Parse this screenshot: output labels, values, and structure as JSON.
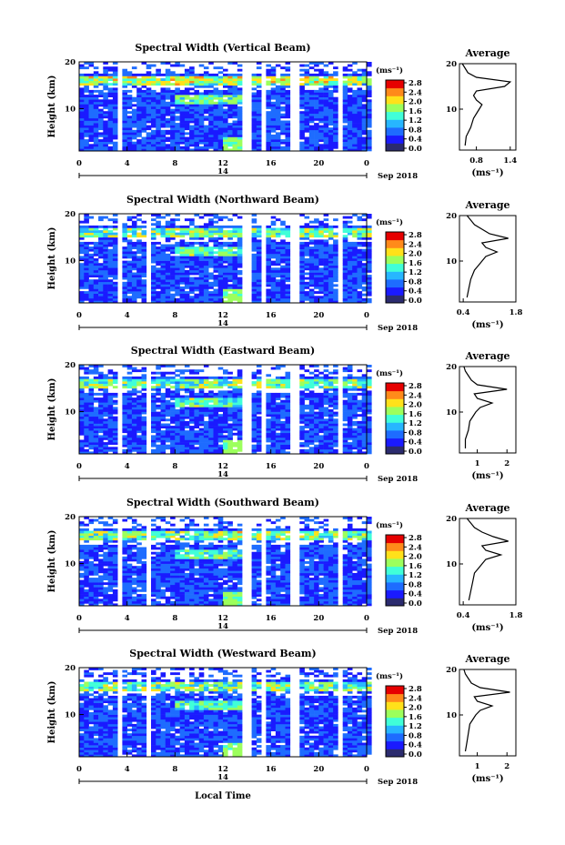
{
  "figure": {
    "xlabel": "Local Time",
    "ylabel": "Height (km)",
    "cbar_unit": "(ms⁻¹)",
    "avg_title": "Average",
    "avg_xlabel": "(ms⁻¹)",
    "date_day": "14",
    "date_label": "Sep 2018",
    "x_ticks": [
      "0",
      "4",
      "8",
      "12",
      "16",
      "20",
      "0"
    ],
    "y_ticks": [
      "20",
      "10"
    ],
    "cbar_ticks": [
      "2.8",
      "2.4",
      "2.0",
      "1.6",
      "1.2",
      "0.8",
      "0.4",
      "0.0"
    ],
    "colors": {
      "scale": [
        "#2b2b6e",
        "#1a1aff",
        "#1e6cff",
        "#27b6ff",
        "#40ffd8",
        "#9cff5c",
        "#ffe11a",
        "#ff8a1a",
        "#e60000"
      ],
      "background": "#ffffff",
      "axis": "#000000"
    }
  },
  "chart_data": [
    {
      "type": "heatmap",
      "title": "Spectral Width (Vertical Beam)",
      "x_range_hours": [
        0,
        24
      ],
      "y_range_km": [
        1,
        20
      ],
      "color_range": [
        0.0,
        3.0
      ],
      "data_gaps_hours": [
        [
          3.2,
          3.5
        ],
        [
          13.8,
          14.1
        ],
        [
          15.4,
          15.6
        ],
        [
          17.8,
          18.1
        ],
        [
          21.6,
          21.9
        ]
      ],
      "average_profile": {
        "xlim": [
          0.5,
          1.5
        ],
        "xticks": [
          "0.8",
          "1.4"
        ],
        "height_km": [
          2,
          4,
          6,
          8,
          9,
          10,
          11,
          12,
          13,
          14,
          15,
          16,
          17,
          18,
          19,
          20
        ],
        "width_ms": [
          0.6,
          0.62,
          0.7,
          0.75,
          0.8,
          0.85,
          0.9,
          0.8,
          0.75,
          0.8,
          1.3,
          1.4,
          0.8,
          0.65,
          0.6,
          0.55
        ]
      }
    },
    {
      "type": "heatmap",
      "title": "Spectral Width (Northward Beam)",
      "x_range_hours": [
        0,
        24
      ],
      "y_range_km": [
        1,
        20
      ],
      "color_range": [
        0.0,
        3.0
      ],
      "data_gaps_hours": [
        [
          3.2,
          3.5
        ],
        [
          5.7,
          6.0
        ],
        [
          13.8,
          14.1
        ],
        [
          15.4,
          15.6
        ],
        [
          17.8,
          18.1
        ],
        [
          21.6,
          21.9
        ]
      ],
      "average_profile": {
        "xlim": [
          0.3,
          1.8
        ],
        "xticks": [
          "0.4",
          "1.8"
        ],
        "height_km": [
          2,
          4,
          6,
          8,
          9,
          10,
          11,
          12,
          13,
          14,
          15,
          16,
          17,
          18,
          19,
          20
        ],
        "width_ms": [
          0.5,
          0.55,
          0.6,
          0.7,
          0.8,
          0.9,
          1.0,
          1.3,
          1.0,
          0.9,
          1.6,
          1.1,
          0.9,
          0.7,
          0.6,
          0.5
        ]
      }
    },
    {
      "type": "heatmap",
      "title": "Spectral Width (Eastward Beam)",
      "x_range_hours": [
        0,
        24
      ],
      "y_range_km": [
        1,
        20
      ],
      "color_range": [
        0.0,
        3.0
      ],
      "data_gaps_hours": [
        [
          3.2,
          3.5
        ],
        [
          5.7,
          6.0
        ],
        [
          13.8,
          14.1
        ],
        [
          15.4,
          15.6
        ],
        [
          17.8,
          18.1
        ],
        [
          21.6,
          21.9
        ]
      ],
      "average_profile": {
        "xlim": [
          0.4,
          2.3
        ],
        "xticks": [
          "1",
          "2"
        ],
        "height_km": [
          2,
          4,
          6,
          8,
          9,
          10,
          11,
          12,
          13,
          14,
          15,
          16,
          17,
          18,
          19,
          20
        ],
        "width_ms": [
          0.6,
          0.6,
          0.7,
          0.75,
          0.85,
          0.95,
          1.1,
          1.5,
          1.0,
          0.9,
          2.0,
          1.0,
          0.8,
          0.7,
          0.6,
          0.55
        ]
      }
    },
    {
      "type": "heatmap",
      "title": "Spectral Width (Southward Beam)",
      "x_range_hours": [
        0,
        24
      ],
      "y_range_km": [
        1,
        20
      ],
      "color_range": [
        0.0,
        3.0
      ],
      "data_gaps_hours": [
        [
          3.2,
          3.5
        ],
        [
          5.7,
          6.0
        ],
        [
          13.8,
          14.1
        ],
        [
          15.4,
          15.6
        ],
        [
          17.8,
          18.1
        ],
        [
          21.6,
          21.9
        ]
      ],
      "average_profile": {
        "xlim": [
          0.3,
          1.8
        ],
        "xticks": [
          "0.4",
          "1.8"
        ],
        "height_km": [
          2,
          4,
          6,
          8,
          9,
          10,
          11,
          12,
          13,
          14,
          15,
          16,
          17,
          18,
          19,
          20
        ],
        "width_ms": [
          0.55,
          0.6,
          0.65,
          0.7,
          0.8,
          0.9,
          1.0,
          1.4,
          1.0,
          0.9,
          1.6,
          1.2,
          0.9,
          0.7,
          0.6,
          0.5
        ]
      }
    },
    {
      "type": "heatmap",
      "title": "Spectral Width (Westward Beam)",
      "x_range_hours": [
        0,
        24
      ],
      "y_range_km": [
        1,
        20
      ],
      "color_range": [
        0.0,
        3.0
      ],
      "data_gaps_hours": [
        [
          3.2,
          3.5
        ],
        [
          5.7,
          6.0
        ],
        [
          13.8,
          14.1
        ],
        [
          15.4,
          15.6
        ],
        [
          17.8,
          18.1
        ],
        [
          21.6,
          21.9
        ]
      ],
      "average_profile": {
        "xlim": [
          0.4,
          2.3
        ],
        "xticks": [
          "1",
          "2"
        ],
        "height_km": [
          2,
          4,
          6,
          8,
          9,
          10,
          11,
          12,
          13,
          14,
          15,
          16,
          17,
          18,
          19,
          20
        ],
        "width_ms": [
          0.6,
          0.65,
          0.7,
          0.75,
          0.85,
          0.95,
          1.1,
          1.5,
          1.0,
          0.9,
          2.1,
          1.1,
          0.8,
          0.7,
          0.6,
          0.55
        ]
      }
    }
  ]
}
